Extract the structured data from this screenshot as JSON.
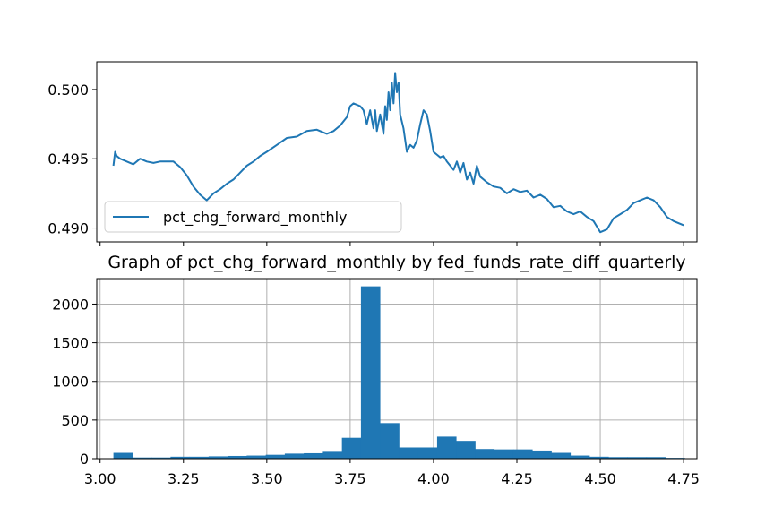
{
  "colors": {
    "series": "#1f77b4",
    "grid": "#b0b0b0",
    "axis": "#000000"
  },
  "chart_data": [
    {
      "type": "line",
      "title": "",
      "xlabel": "",
      "ylabel": "",
      "xlim": [
        2.99,
        4.79
      ],
      "ylim": [
        0.489,
        0.502
      ],
      "yticks": [
        0.49,
        0.495,
        0.5
      ],
      "ytick_labels": [
        "0.490",
        "0.495",
        "0.500"
      ],
      "xticks": [
        3.0,
        3.25,
        3.5,
        3.75,
        4.0,
        4.25,
        4.5,
        4.75
      ],
      "xtick_labels_shown": false,
      "grid": false,
      "legend": {
        "position": "lower-left",
        "entries": [
          "pct_chg_forward_monthly"
        ]
      },
      "series": [
        {
          "name": "pct_chg_forward_monthly",
          "x": [
            3.04,
            3.045,
            3.05,
            3.06,
            3.08,
            3.1,
            3.12,
            3.14,
            3.16,
            3.18,
            3.2,
            3.22,
            3.24,
            3.26,
            3.28,
            3.3,
            3.32,
            3.34,
            3.36,
            3.38,
            3.4,
            3.42,
            3.44,
            3.46,
            3.48,
            3.5,
            3.53,
            3.56,
            3.59,
            3.62,
            3.65,
            3.68,
            3.7,
            3.72,
            3.74,
            3.75,
            3.76,
            3.78,
            3.79,
            3.8,
            3.81,
            3.82,
            3.825,
            3.83,
            3.84,
            3.85,
            3.855,
            3.86,
            3.865,
            3.87,
            3.875,
            3.88,
            3.885,
            3.89,
            3.895,
            3.9,
            3.91,
            3.92,
            3.93,
            3.94,
            3.95,
            3.96,
            3.97,
            3.98,
            3.99,
            4.0,
            4.01,
            4.02,
            4.03,
            4.04,
            4.05,
            4.06,
            4.07,
            4.08,
            4.09,
            4.1,
            4.11,
            4.12,
            4.13,
            4.14,
            4.15,
            4.16,
            4.18,
            4.2,
            4.22,
            4.24,
            4.26,
            4.28,
            4.3,
            4.32,
            4.34,
            4.36,
            4.38,
            4.4,
            4.42,
            4.44,
            4.46,
            4.48,
            4.5,
            4.52,
            4.54,
            4.56,
            4.58,
            4.6,
            4.62,
            4.64,
            4.66,
            4.68,
            4.7,
            4.72,
            4.75
          ],
          "values": [
            0.4945,
            0.4955,
            0.4952,
            0.495,
            0.4948,
            0.4946,
            0.495,
            0.4948,
            0.4947,
            0.4948,
            0.4948,
            0.4948,
            0.4944,
            0.4938,
            0.493,
            0.4924,
            0.492,
            0.4925,
            0.4928,
            0.4932,
            0.4935,
            0.494,
            0.4945,
            0.4948,
            0.4952,
            0.4955,
            0.496,
            0.4965,
            0.4966,
            0.497,
            0.4971,
            0.4968,
            0.497,
            0.4974,
            0.498,
            0.4988,
            0.499,
            0.4988,
            0.4985,
            0.4975,
            0.4985,
            0.4972,
            0.4985,
            0.497,
            0.4982,
            0.4968,
            0.4988,
            0.4978,
            0.4998,
            0.4985,
            0.5005,
            0.499,
            0.5012,
            0.4998,
            0.5005,
            0.4982,
            0.4972,
            0.4955,
            0.496,
            0.4958,
            0.4963,
            0.4975,
            0.4985,
            0.4982,
            0.497,
            0.4955,
            0.4953,
            0.4951,
            0.4952,
            0.4948,
            0.4945,
            0.4942,
            0.4948,
            0.494,
            0.4947,
            0.4935,
            0.494,
            0.4932,
            0.4945,
            0.4937,
            0.4935,
            0.4933,
            0.493,
            0.4929,
            0.4925,
            0.4928,
            0.4926,
            0.4927,
            0.4922,
            0.4924,
            0.4921,
            0.4915,
            0.4916,
            0.4912,
            0.491,
            0.4912,
            0.4908,
            0.4905,
            0.4897,
            0.4899,
            0.4907,
            0.491,
            0.4913,
            0.4918,
            0.492,
            0.4922,
            0.492,
            0.4915,
            0.4908,
            0.4905,
            0.4902
          ]
        }
      ]
    },
    {
      "type": "bar",
      "title": "Graph of pct_chg_forward_monthly by fed_funds_rate_diff_quarterly",
      "xlabel": "",
      "ylabel": "",
      "xlim": [
        2.99,
        4.79
      ],
      "ylim": [
        0,
        2330
      ],
      "xticks": [
        3.0,
        3.25,
        3.5,
        3.75,
        4.0,
        4.25,
        4.5,
        4.75
      ],
      "xtick_labels": [
        "3.00",
        "3.25",
        "3.50",
        "3.75",
        "4.00",
        "4.25",
        "4.50",
        "4.75"
      ],
      "yticks": [
        0,
        500,
        1000,
        1500,
        2000
      ],
      "ytick_labels": [
        "0",
        "500",
        "1000",
        "1500",
        "2000"
      ],
      "grid": true,
      "bin_edges": [
        3.04,
        3.0971,
        3.1542,
        3.2113,
        3.2684,
        3.3255,
        3.3826,
        3.4397,
        3.4968,
        3.5539,
        3.611,
        3.6681,
        3.7252,
        3.7823,
        3.8394,
        3.8965,
        3.9536,
        4.0107,
        4.0678,
        4.1249,
        4.182,
        4.2391,
        4.2962,
        4.3533,
        4.4104,
        4.4675,
        4.5246,
        4.5817,
        4.6388,
        4.6959,
        4.753
      ],
      "values": [
        75,
        15,
        15,
        25,
        25,
        30,
        35,
        40,
        50,
        65,
        70,
        100,
        270,
        2230,
        460,
        145,
        145,
        285,
        230,
        125,
        120,
        120,
        105,
        75,
        40,
        25,
        20,
        20,
        20,
        10
      ]
    }
  ]
}
